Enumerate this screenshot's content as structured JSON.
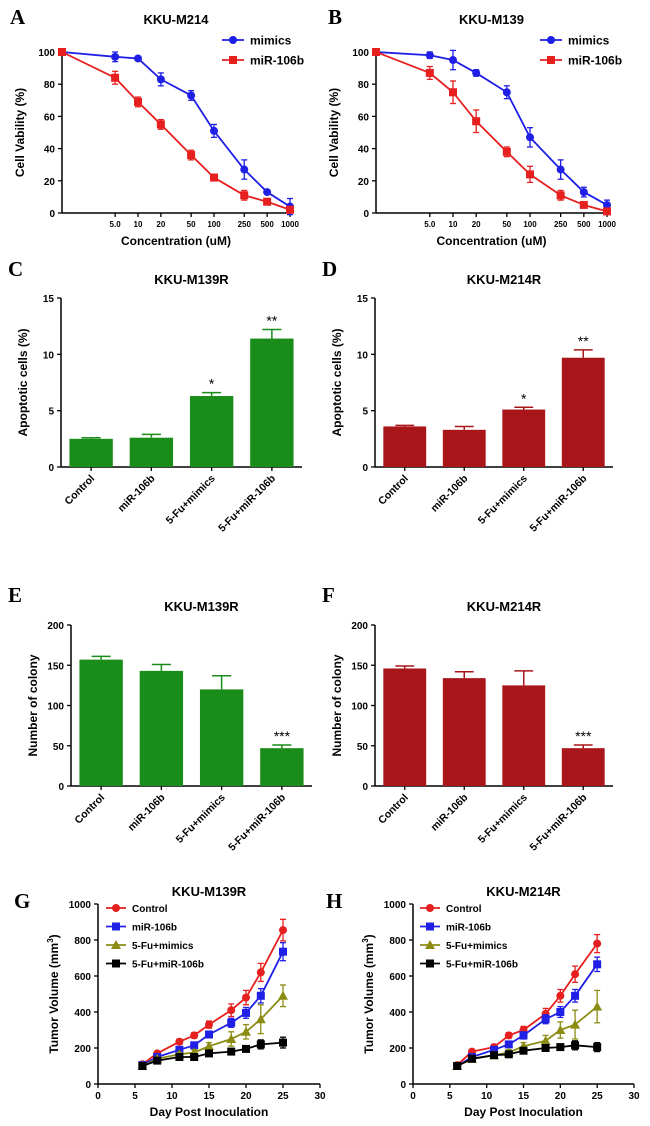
{
  "figure_letters": [
    "A",
    "B",
    "C",
    "D",
    "E",
    "F",
    "G",
    "H"
  ],
  "chart_data": [
    {
      "id": "A",
      "type": "line",
      "title": "KKU-M214",
      "xlabel": "Concentration (uM)",
      "ylabel": "Cell Vability (%)",
      "xscale": "log",
      "xlim": [
        1,
        1000
      ],
      "ylim": [
        0,
        100
      ],
      "yticks": [
        0,
        20,
        40,
        60,
        80,
        100
      ],
      "xtick_labels": [
        "5.0",
        "10",
        "20",
        "50",
        "100",
        "250",
        "500",
        "1000"
      ],
      "x": [
        1,
        5,
        10,
        20,
        50,
        100,
        250,
        500,
        1000
      ],
      "series": [
        {
          "name": "mimics",
          "color": "#1f1fe6",
          "marker": "circle",
          "values": [
            100,
            97,
            96,
            83,
            73,
            51,
            27,
            13,
            4
          ],
          "errors": [
            0,
            3,
            0,
            4,
            3,
            4,
            6,
            1,
            5
          ]
        },
        {
          "name": "miR-106b",
          "color": "#e61f1f",
          "marker": "square",
          "values": [
            100,
            84,
            69,
            55,
            36,
            22,
            11,
            7,
            2
          ],
          "errors": [
            0,
            4,
            3,
            3,
            3,
            2,
            3,
            1,
            1
          ]
        }
      ]
    },
    {
      "id": "B",
      "type": "line",
      "title": "KKU-M139",
      "xlabel": "Concentration (uM)",
      "ylabel": "Cell Vability (%)",
      "xscale": "log",
      "xlim": [
        1,
        1000
      ],
      "ylim": [
        0,
        100
      ],
      "yticks": [
        0,
        20,
        40,
        60,
        80,
        100
      ],
      "xtick_labels": [
        "5.0",
        "10",
        "20",
        "50",
        "100",
        "250",
        "500",
        "1000"
      ],
      "x": [
        1,
        5,
        10,
        20,
        50,
        100,
        250,
        500,
        1000
      ],
      "series": [
        {
          "name": "mimics",
          "color": "#1f1fe6",
          "marker": "circle",
          "values": [
            100,
            98,
            95,
            87,
            75,
            47,
            27,
            13,
            5
          ],
          "errors": [
            0,
            2,
            6,
            2,
            4,
            6,
            6,
            3,
            3
          ]
        },
        {
          "name": "miR-106b",
          "color": "#e61f1f",
          "marker": "square",
          "values": [
            100,
            87,
            75,
            57,
            38,
            24,
            11,
            5,
            1
          ],
          "errors": [
            0,
            4,
            7,
            7,
            3,
            5,
            3,
            1,
            1
          ]
        }
      ]
    },
    {
      "id": "C",
      "type": "bar",
      "title": "KKU-M139R",
      "ylabel": "Apoptotic cells (%)",
      "ylim": [
        0,
        15
      ],
      "yticks": [
        0,
        5,
        10,
        15
      ],
      "color": "#1a8c1a",
      "categories": [
        "Control",
        "miR-106b",
        "5-Fu+mimics",
        "5-Fu+miR-106b"
      ],
      "values": [
        2.5,
        2.6,
        6.3,
        11.4
      ],
      "errors": [
        0.1,
        0.3,
        0.3,
        0.8
      ],
      "significance": [
        "",
        "",
        "*",
        "**"
      ]
    },
    {
      "id": "D",
      "type": "bar",
      "title": "KKU-M214R",
      "ylabel": "Apoptotic cells (%)",
      "ylim": [
        0,
        15
      ],
      "yticks": [
        0,
        5,
        10,
        15
      ],
      "color": "#a8161a",
      "categories": [
        "Control",
        "miR-106b",
        "5-Fu+mimics",
        "5-Fu+miR-106b"
      ],
      "values": [
        3.6,
        3.3,
        5.1,
        9.7
      ],
      "errors": [
        0.1,
        0.3,
        0.2,
        0.7
      ],
      "significance": [
        "",
        "",
        "*",
        "**"
      ]
    },
    {
      "id": "E",
      "type": "bar",
      "title": "KKU-M139R",
      "ylabel": "Number of colony",
      "ylim": [
        0,
        200
      ],
      "yticks": [
        0,
        50,
        100,
        150,
        200
      ],
      "color": "#1a8c1a",
      "categories": [
        "Control",
        "miR-106b",
        "5-Fu+mimics",
        "5-Fu+miR-106b"
      ],
      "values": [
        157,
        143,
        120,
        47
      ],
      "errors": [
        4,
        8,
        17,
        4
      ],
      "significance": [
        "",
        "",
        "",
        "***"
      ]
    },
    {
      "id": "F",
      "type": "bar",
      "title": "KKU-M214R",
      "ylabel": "Number of colony",
      "ylim": [
        0,
        200
      ],
      "yticks": [
        0,
        50,
        100,
        150,
        200
      ],
      "color": "#a8161a",
      "categories": [
        "Control",
        "miR-106b",
        "5-Fu+mimics",
        "5-Fu+miR-106b"
      ],
      "values": [
        146,
        134,
        125,
        47
      ],
      "errors": [
        3,
        8,
        18,
        4
      ],
      "significance": [
        "",
        "",
        "",
        "***"
      ]
    },
    {
      "id": "G",
      "type": "line",
      "title": "KKU-M139R",
      "xlabel": "Day Post Inoculation",
      "ylabel": "Tumor Volume (mm",
      "ylabel_sup": "3",
      "ylabel_close": ")",
      "xlim": [
        0,
        30
      ],
      "ylim": [
        0,
        1000
      ],
      "xticks": [
        0,
        5,
        10,
        15,
        20,
        25,
        30
      ],
      "yticks": [
        0,
        200,
        400,
        600,
        800,
        1000
      ],
      "x": [
        6,
        8,
        11,
        13,
        15,
        18,
        20,
        22,
        25
      ],
      "series": [
        {
          "name": "Control",
          "color": "#e61f1f",
          "marker": "circle",
          "values": [
            110,
            170,
            235,
            270,
            330,
            410,
            480,
            620,
            855
          ],
          "errors": [
            5,
            10,
            15,
            15,
            20,
            35,
            40,
            50,
            60
          ]
        },
        {
          "name": "miR-106b",
          "color": "#1f1fe6",
          "marker": "square",
          "values": [
            105,
            150,
            190,
            215,
            275,
            340,
            395,
            490,
            735
          ],
          "errors": [
            5,
            10,
            10,
            15,
            15,
            25,
            30,
            40,
            50
          ]
        },
        {
          "name": "5-Fu+mimics",
          "color": "#8c8c14",
          "marker": "triangle",
          "values": [
            100,
            140,
            165,
            175,
            210,
            250,
            290,
            360,
            490
          ],
          "errors": [
            5,
            10,
            10,
            15,
            20,
            40,
            40,
            80,
            60
          ]
        },
        {
          "name": "5-Fu+miR-106b",
          "color": "#000000",
          "marker": "square",
          "values": [
            100,
            130,
            150,
            150,
            170,
            180,
            195,
            220,
            230
          ],
          "errors": [
            5,
            10,
            10,
            10,
            15,
            10,
            15,
            25,
            30
          ]
        }
      ]
    },
    {
      "id": "H",
      "type": "line",
      "title": "KKU-M214R",
      "xlabel": "Day Post Inoculation",
      "ylabel": "Tumor Volume (mm",
      "ylabel_sup": "3",
      "ylabel_close": ")",
      "xlim": [
        0,
        30
      ],
      "ylim": [
        0,
        1000
      ],
      "xticks": [
        0,
        5,
        10,
        15,
        20,
        25,
        30
      ],
      "yticks": [
        0,
        200,
        400,
        600,
        800,
        1000
      ],
      "x": [
        6,
        8,
        11,
        13,
        15,
        18,
        20,
        22,
        25
      ],
      "series": [
        {
          "name": "Control",
          "color": "#e61f1f",
          "marker": "circle",
          "values": [
            105,
            180,
            205,
            270,
            300,
            390,
            490,
            610,
            780
          ],
          "errors": [
            5,
            10,
            15,
            15,
            20,
            30,
            35,
            45,
            50
          ]
        },
        {
          "name": "miR-106b",
          "color": "#1f1fe6",
          "marker": "square",
          "values": [
            100,
            150,
            190,
            220,
            270,
            360,
            400,
            490,
            665
          ],
          "errors": [
            5,
            10,
            10,
            15,
            20,
            25,
            30,
            35,
            40
          ]
        },
        {
          "name": "5-Fu+mimics",
          "color": "#8c8c14",
          "marker": "triangle",
          "values": [
            100,
            140,
            160,
            175,
            210,
            240,
            300,
            330,
            430
          ],
          "errors": [
            5,
            10,
            10,
            15,
            20,
            30,
            45,
            80,
            90
          ]
        },
        {
          "name": "5-Fu+miR-106b",
          "color": "#000000",
          "marker": "square",
          "values": [
            100,
            140,
            160,
            165,
            185,
            200,
            205,
            215,
            205
          ],
          "errors": [
            5,
            10,
            10,
            10,
            15,
            15,
            15,
            25,
            25
          ]
        }
      ]
    }
  ]
}
